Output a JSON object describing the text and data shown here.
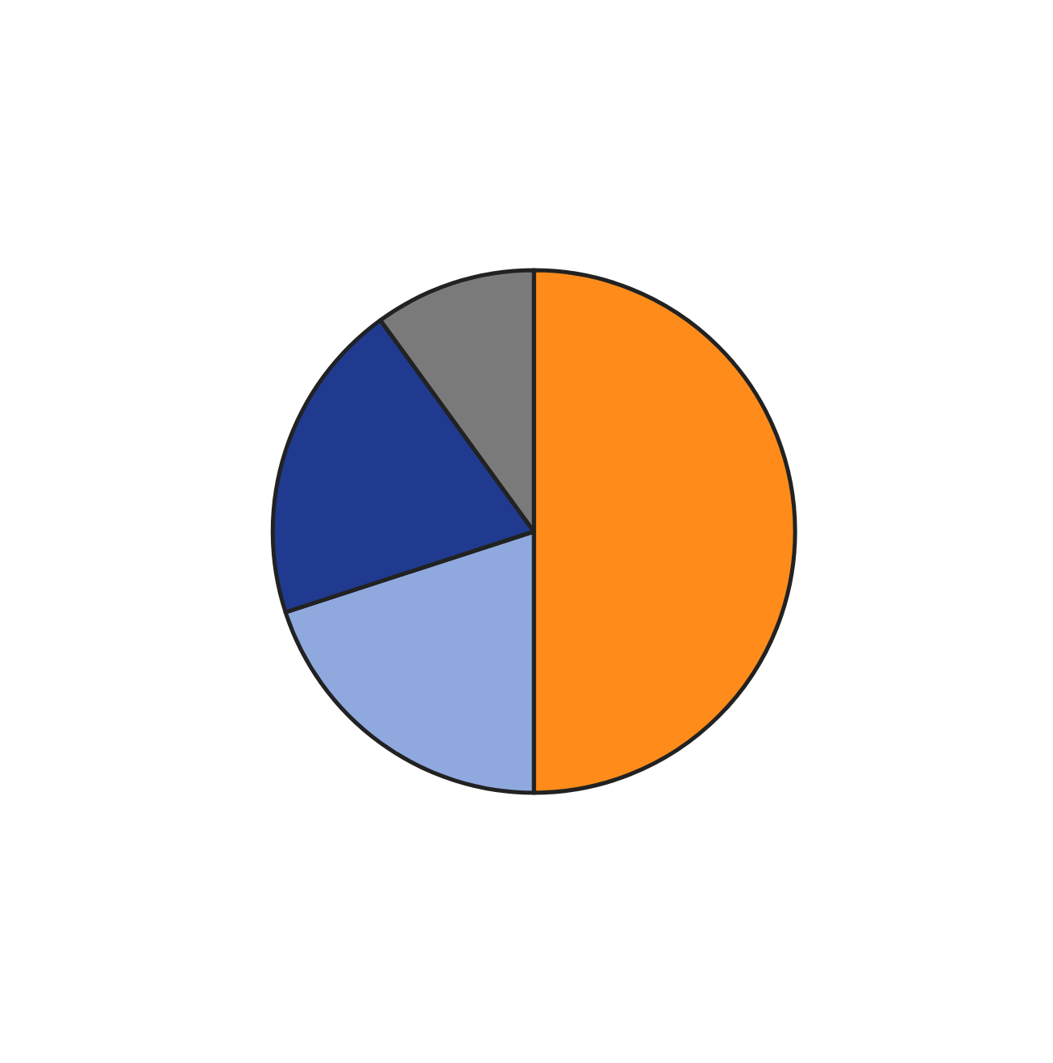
{
  "chart_data": {
    "type": "pie",
    "categories": [
      null,
      null,
      null,
      null
    ],
    "values": [
      50,
      20,
      20,
      10
    ],
    "colors": [
      "#ff8c1a",
      "#8fa9de",
      "#1f3a8f",
      "#7a7a7a"
    ]
  }
}
